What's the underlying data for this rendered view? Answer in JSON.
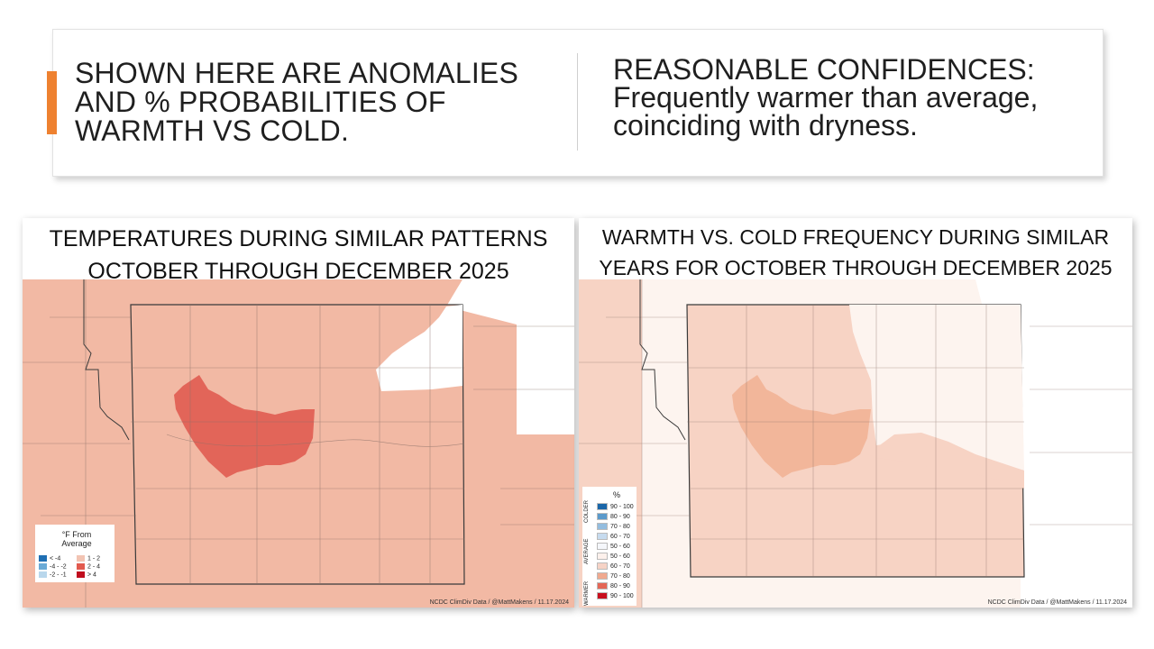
{
  "header": {
    "left_text": "SHOWN HERE ARE ANOMALIES\nAND % PROBABILITIES OF\nWARMTH VS COLD.",
    "right_title": "REASONABLE CONFIDENCES:",
    "right_body": "Frequently warmer than average,\ncoinciding with dryness.",
    "accent_color": "#ee8130"
  },
  "left_map": {
    "title": "TEMPERATURES DURING SIMILAR PATTERNS\nOCTOBER THROUGH DECEMBER 2025",
    "legend_title": "°F From\nAverage",
    "legend_items": [
      {
        "label": "< -4",
        "color": "#1f6fb3"
      },
      {
        "label": "-4 - -2",
        "color": "#6aaad6"
      },
      {
        "label": "-2 - -1",
        "color": "#b9d7ec"
      },
      {
        "label": "1 - 2",
        "color": "#f2c4b3"
      },
      {
        "label": "2 - 4",
        "color": "#e25a4e"
      },
      {
        "label": "> 4",
        "color": "#c00d1e"
      }
    ],
    "credit": "NCDC ClimDiv Data / @MattMakens / 11.17.2024"
  },
  "right_map": {
    "title": "WARMTH VS. COLD FREQUENCY DURING SIMILAR\nYEARS FOR OCTOBER THROUGH DECEMBER 2025",
    "legend_unit": "%",
    "legend_side_labels": [
      "COLDER",
      "AVERAGE",
      "WARMER"
    ],
    "legend_items": [
      {
        "label": "90 - 100",
        "color": "#1a66a8"
      },
      {
        "label": "80 - 90",
        "color": "#5b9acb"
      },
      {
        "label": "70 - 80",
        "color": "#93bddf"
      },
      {
        "label": "60 - 70",
        "color": "#c6dbef"
      },
      {
        "label": "50 - 60",
        "color": "#f5f7fb"
      },
      {
        "label": "50 - 60",
        "color": "#fdf1ec"
      },
      {
        "label": "60 - 70",
        "color": "#f6d3c6"
      },
      {
        "label": "70 - 80",
        "color": "#f0a98f"
      },
      {
        "label": "80 - 90",
        "color": "#e46757"
      },
      {
        "label": "90 - 100",
        "color": "#c8101e"
      }
    ],
    "credit": "NCDC ClimDiv Data / @MattMakens / 11.17.2024"
  },
  "colors": {
    "anomaly_1_2": "#f2b9a4",
    "anomaly_2_4": "#e26559",
    "prob_60_70": "#f7d3c4",
    "prob_70_80": "#f2b69a",
    "prob_50_60": "#fdf4ef"
  }
}
